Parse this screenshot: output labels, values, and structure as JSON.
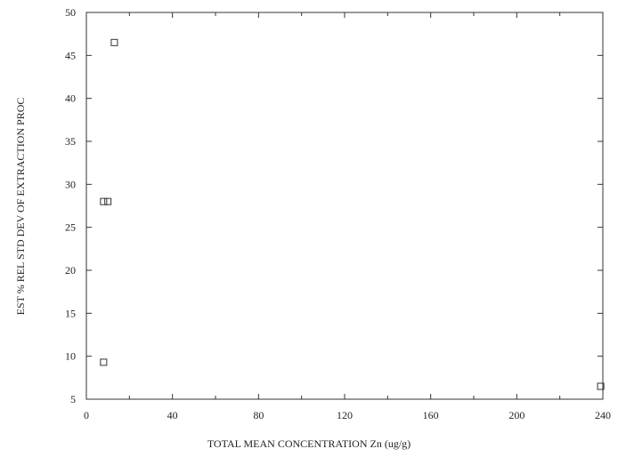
{
  "chart_data": {
    "type": "scatter",
    "xlabel": "TOTAL MEAN CONCENTRATION Zn (ug/g)",
    "ylabel": "EST % REL STD DEV OF EXTRACTION PROC",
    "xlim": [
      0,
      240
    ],
    "ylim": [
      5,
      50
    ],
    "xticks": [
      "0",
      "40",
      "80",
      "120",
      "160",
      "200",
      "240"
    ],
    "yticks": [
      "5",
      "10",
      "15",
      "20",
      "25",
      "30",
      "35",
      "40",
      "45",
      "50"
    ],
    "marker": "open-square",
    "grid": false,
    "series": [
      {
        "points": [
          {
            "x": 13,
            "y": 46.5
          },
          {
            "x": 8,
            "y": 28
          },
          {
            "x": 10,
            "y": 28
          },
          {
            "x": 8,
            "y": 9.3
          },
          {
            "x": 239,
            "y": 6.5
          }
        ]
      }
    ]
  }
}
